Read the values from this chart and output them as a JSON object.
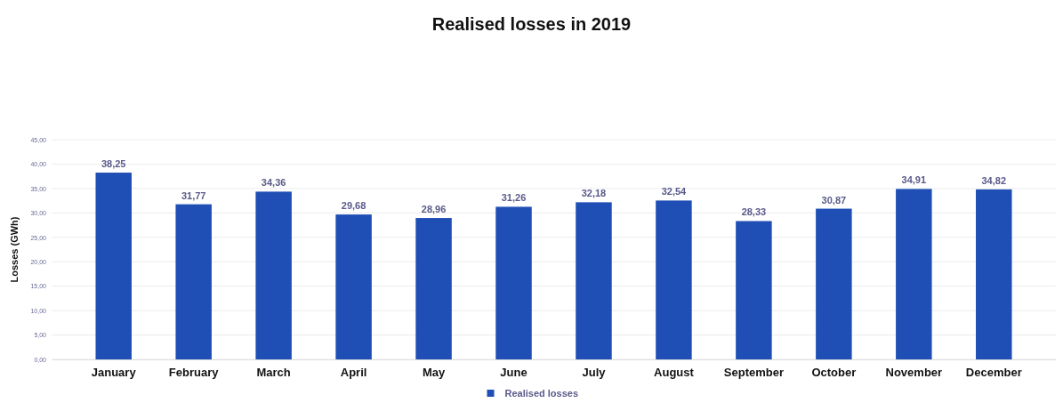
{
  "chart_data": {
    "type": "bar",
    "title": "Realised losses in 2019",
    "ylabel": "Losses (GWh)",
    "categories": [
      "January",
      "February",
      "March",
      "April",
      "May",
      "June",
      "July",
      "August",
      "September",
      "October",
      "November",
      "December"
    ],
    "series": [
      {
        "name": "Realised losses",
        "color": "#1f4fb5",
        "values": [
          38.25,
          31.77,
          34.36,
          29.68,
          28.96,
          31.26,
          32.18,
          32.54,
          28.33,
          30.87,
          34.91,
          34.82
        ],
        "value_labels": [
          "38,25",
          "31,77",
          "34,36",
          "29,68",
          "28,96",
          "31,26",
          "32,18",
          "32,54",
          "28,33",
          "30,87",
          "34,91",
          "34,82"
        ]
      }
    ],
    "ylim": [
      0,
      45
    ],
    "yticks": [
      {
        "value": 0,
        "label": "0,00"
      },
      {
        "value": 5,
        "label": "5,00"
      },
      {
        "value": 10,
        "label": "10,00"
      },
      {
        "value": 15,
        "label": "15,00"
      },
      {
        "value": 20,
        "label": "20,00"
      },
      {
        "value": 25,
        "label": "25,00"
      },
      {
        "value": 30,
        "label": "30,00"
      },
      {
        "value": 35,
        "label": "35,00"
      },
      {
        "value": 40,
        "label": "40,00"
      },
      {
        "value": 45,
        "label": "45,00"
      }
    ],
    "grid": "y",
    "legend": "bottom"
  }
}
